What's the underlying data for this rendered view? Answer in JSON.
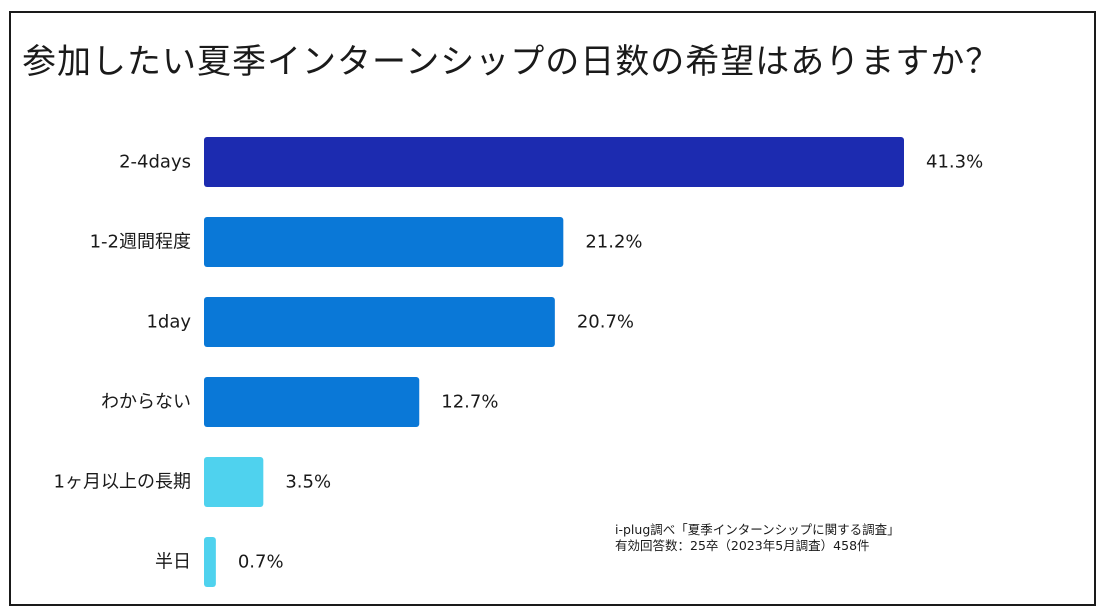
{
  "chart_data": {
    "type": "bar",
    "orientation": "horizontal",
    "title": "参加したい夏季インターンシップの日数の希望はありますか？",
    "categories": [
      "2-4days",
      "1-2週間程度",
      "1day",
      "わからない",
      "1ヶ月以上の長期",
      "半日"
    ],
    "values": [
      41.3,
      21.2,
      20.7,
      12.7,
      3.5,
      0.7
    ],
    "value_labels": [
      "41.3%",
      "21.2%",
      "20.7%",
      "12.7%",
      "3.5%",
      "0.7%"
    ],
    "colors": [
      "#1c2bb0",
      "#0a78d7",
      "#0a78d7",
      "#0a78d7",
      "#4fd2ee",
      "#4fd2ee"
    ],
    "unit": "%",
    "xlabel": "",
    "ylabel": "",
    "grid": false,
    "legend": "none"
  },
  "source": {
    "line1": "i-plug調べ「夏季インターンシップに関する調査」",
    "line2": "有効回答数：25卒（2023年5月調査）458件"
  }
}
